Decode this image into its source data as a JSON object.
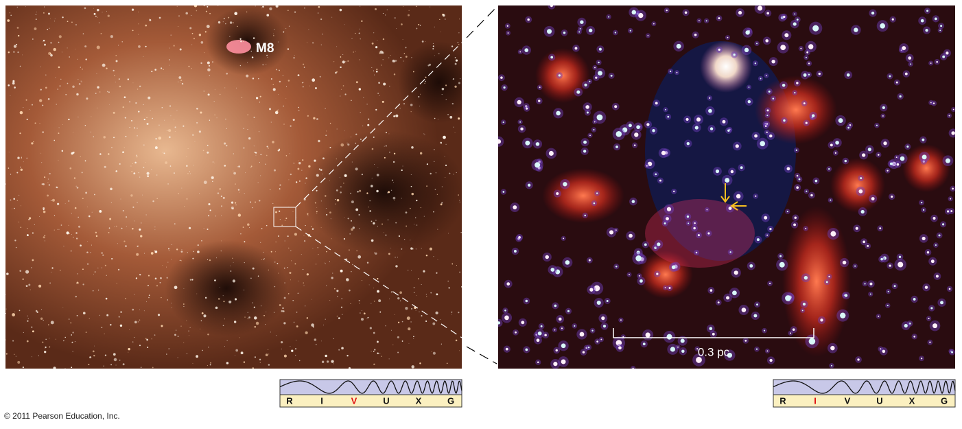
{
  "left_panel": {
    "label": "M8",
    "spectrum": {
      "bands": [
        "R",
        "I",
        "V",
        "U",
        "X",
        "G"
      ],
      "highlighted": "V"
    }
  },
  "right_panel": {
    "scale_bar": "0.3 pc",
    "spectrum": {
      "bands": [
        "R",
        "I",
        "V",
        "U",
        "X",
        "G"
      ],
      "highlighted": "I"
    }
  },
  "footer": {
    "copyright": "© 2011 Pearson Education, Inc."
  }
}
